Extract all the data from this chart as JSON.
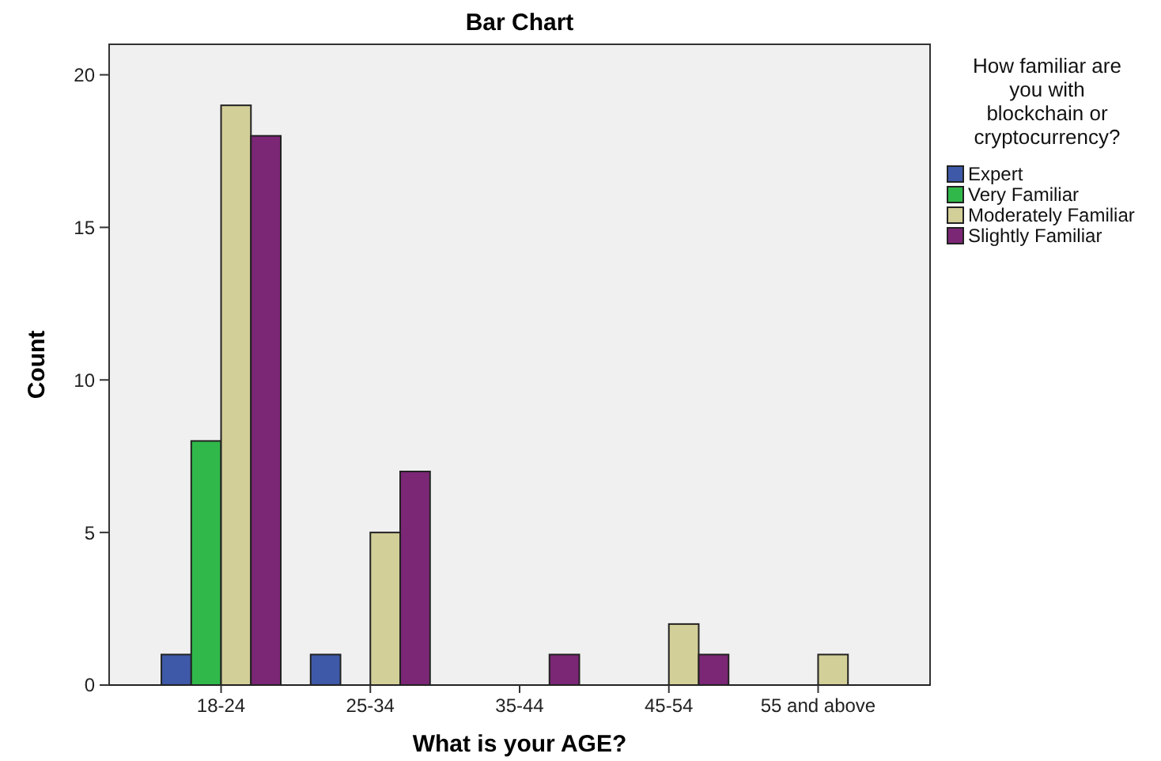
{
  "chart_data": {
    "type": "bar",
    "title": "Bar Chart",
    "xlabel": "What is your AGE?",
    "ylabel": "Count",
    "legend_title": "How familiar are you with blockchain or cryptocurrency?",
    "categories": [
      "18-24",
      "25-34",
      "35-44",
      "45-54",
      "55 and above"
    ],
    "series": [
      {
        "name": "Expert",
        "color": "#3e59a8",
        "values": [
          1,
          1,
          0,
          0,
          0
        ]
      },
      {
        "name": "Very Familiar",
        "color": "#30b94a",
        "values": [
          8,
          0,
          0,
          0,
          0
        ]
      },
      {
        "name": "Moderately Familiar",
        "color": "#d3cf98",
        "values": [
          19,
          5,
          0,
          2,
          1
        ]
      },
      {
        "name": "Slightly Familiar",
        "color": "#7c2676",
        "values": [
          18,
          7,
          1,
          1,
          0
        ]
      }
    ],
    "ylim": [
      0,
      21
    ],
    "yticks": [
      0,
      5,
      10,
      15,
      20
    ],
    "grid": false,
    "legend": "right"
  }
}
